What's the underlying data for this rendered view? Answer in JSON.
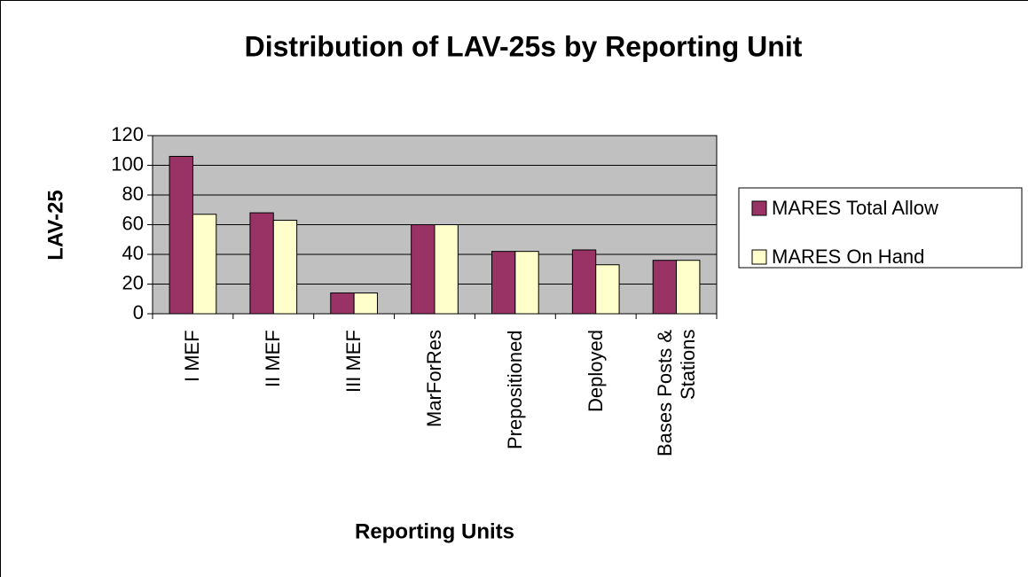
{
  "chart_data": {
    "type": "bar",
    "title": "Distribution of LAV-25s by Reporting Unit",
    "x_label": "Reporting Units",
    "y_label": "LAV-25",
    "categories": [
      "I MEF",
      "II MEF",
      "III MEF",
      "MarForRes",
      "Prepositioned",
      "Deployed",
      "Bases Posts & Stations"
    ],
    "series": [
      {
        "name": "MARES Total Allow",
        "color": "#993366",
        "values": [
          106,
          68,
          14,
          60,
          42,
          43,
          36
        ]
      },
      {
        "name": "MARES On Hand",
        "color": "#ffffcc",
        "values": [
          67,
          63,
          14,
          60,
          42,
          33,
          36
        ]
      }
    ],
    "ylim": [
      0,
      120
    ],
    "yticks": [
      0,
      20,
      40,
      60,
      80,
      100,
      120
    ],
    "grid": true,
    "plot_background": "#c0c0c0",
    "legend": "right"
  }
}
